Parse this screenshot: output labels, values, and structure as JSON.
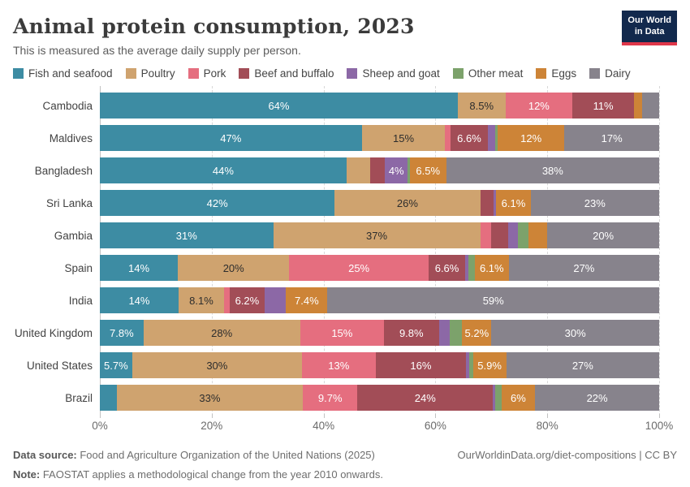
{
  "header": {
    "title": "Animal protein consumption, 2023",
    "subtitle": "This is measured as the average daily supply per person."
  },
  "logo": {
    "line1": "Our World",
    "line2": "in Data"
  },
  "colors": {
    "logo_bg": "#12294d",
    "logo_accent": "#e0374a",
    "gridline": "#d8d8d8",
    "axis_line": "#c2c2c2"
  },
  "chart_data": {
    "type": "bar",
    "stacked": true,
    "orientation": "horizontal",
    "value_unit": "%",
    "xlim": [
      0,
      100
    ],
    "grid": "dashed-vertical",
    "legend_position": "top",
    "x_ticks": [
      {
        "pos": 0,
        "label": "0%"
      },
      {
        "pos": 20,
        "label": "20%"
      },
      {
        "pos": 40,
        "label": "40%"
      },
      {
        "pos": 60,
        "label": "60%"
      },
      {
        "pos": 80,
        "label": "80%"
      },
      {
        "pos": 100,
        "label": "100%"
      }
    ],
    "series": [
      {
        "name": "Fish and seafood",
        "color": "#3d8ca3",
        "label_color": "#ffffff"
      },
      {
        "name": "Poultry",
        "color": "#cfa36f",
        "label_color": "#2d2d2d"
      },
      {
        "name": "Pork",
        "color": "#e56e7f",
        "label_color": "#ffffff"
      },
      {
        "name": "Beef and buffalo",
        "color": "#a24d57",
        "label_color": "#ffffff"
      },
      {
        "name": "Sheep and goat",
        "color": "#8c68a6",
        "label_color": "#ffffff"
      },
      {
        "name": "Other meat",
        "color": "#7ca26b",
        "label_color": "#ffffff"
      },
      {
        "name": "Eggs",
        "color": "#cd8437",
        "label_color": "#ffffff"
      },
      {
        "name": "Dairy",
        "color": "#87838c",
        "label_color": "#ffffff"
      }
    ],
    "rows": [
      {
        "country": "Cambodia",
        "values": [
          64,
          8.5,
          12,
          11,
          0,
          0,
          1.5,
          3
        ],
        "labels": [
          "64%",
          "8.5%",
          "12%",
          "11%",
          "",
          "",
          "",
          ""
        ]
      },
      {
        "country": "Maldives",
        "values": [
          47,
          15,
          1,
          6.6,
          1.4,
          0.4,
          12,
          17
        ],
        "labels": [
          "47%",
          "15%",
          "",
          "6.6%",
          "",
          "",
          "12%",
          "17%"
        ]
      },
      {
        "country": "Bangladesh",
        "values": [
          44,
          4.3,
          0,
          2.6,
          4,
          0.4,
          6.5,
          38
        ],
        "labels": [
          "44%",
          "",
          "",
          "",
          "4%",
          "",
          "6.5%",
          "38%"
        ]
      },
      {
        "country": "Sri Lanka",
        "values": [
          42,
          26,
          0,
          2.4,
          0.5,
          0,
          6.1,
          23
        ],
        "labels": [
          "42%",
          "26%",
          "",
          "",
          "",
          "",
          "6.1%",
          "23%"
        ]
      },
      {
        "country": "Gambia",
        "values": [
          31,
          37,
          2,
          3,
          1.8,
          1.9,
          3.3,
          20
        ],
        "labels": [
          "31%",
          "37%",
          "",
          "",
          "",
          "",
          "",
          "20%"
        ]
      },
      {
        "country": "Spain",
        "values": [
          14,
          20,
          25,
          6.6,
          0.6,
          1.1,
          6.1,
          27
        ],
        "labels": [
          "14%",
          "20%",
          "25%",
          "6.6%",
          "",
          "",
          "6.1%",
          "27%"
        ]
      },
      {
        "country": "India",
        "values": [
          14,
          8.1,
          1,
          6.2,
          3.8,
          0,
          7.4,
          59
        ],
        "labels": [
          "14%",
          "8.1%",
          "",
          "6.2%",
          "",
          "",
          "7.4%",
          "59%"
        ]
      },
      {
        "country": "United Kingdom",
        "values": [
          7.8,
          28,
          15,
          9.8,
          2,
          2.2,
          5.2,
          30
        ],
        "labels": [
          "7.8%",
          "28%",
          "15%",
          "9.8%",
          "",
          "",
          "5.2%",
          "30%"
        ]
      },
      {
        "country": "United States",
        "values": [
          5.7,
          30,
          13,
          16,
          0.5,
          0.7,
          5.9,
          27
        ],
        "labels": [
          "5.7%",
          "30%",
          "13%",
          "16%",
          "",
          "",
          "5.9%",
          "27%"
        ]
      },
      {
        "country": "Brazil",
        "values": [
          3,
          33,
          9.7,
          24,
          0.4,
          1.1,
          6,
          22
        ],
        "labels": [
          "",
          "33%",
          "9.7%",
          "24%",
          "",
          "",
          "6%",
          "22%"
        ]
      }
    ]
  },
  "footer": {
    "source_label": "Data source:",
    "source_text": " Food and Agriculture Organization of the United Nations (2025)",
    "note_label": "Note:",
    "note_text": " FAOSTAT applies a methodological change from the year 2010 onwards.",
    "credit": "OurWorldinData.org/diet-compositions | CC BY"
  }
}
